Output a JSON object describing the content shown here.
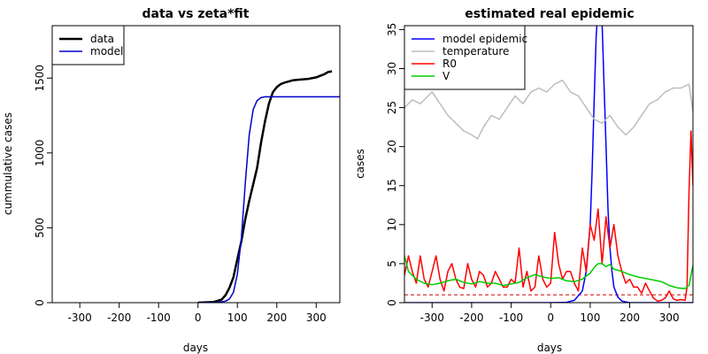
{
  "chart_data": [
    {
      "type": "line",
      "title": "data vs zeta*fit",
      "xlabel": "days",
      "ylabel": "cummulative cases",
      "xlim": [
        -370,
        360
      ],
      "ylim": [
        0,
        1850
      ],
      "xticks": [
        -300,
        -200,
        -100,
        0,
        100,
        200,
        300
      ],
      "yticks": [
        0,
        500,
        1000,
        1500
      ],
      "legend_position": "top-left",
      "series": [
        {
          "name": "data",
          "color": "#000000",
          "x": [
            0,
            40,
            60,
            70,
            80,
            90,
            100,
            110,
            120,
            130,
            140,
            150,
            160,
            170,
            180,
            190,
            200,
            210,
            220,
            240,
            260,
            280,
            300,
            310,
            320,
            330,
            340
          ],
          "y": [
            0,
            5,
            20,
            50,
            100,
            170,
            290,
            410,
            560,
            680,
            790,
            900,
            1070,
            1210,
            1330,
            1405,
            1440,
            1460,
            1470,
            1485,
            1490,
            1495,
            1505,
            1515,
            1525,
            1540,
            1545
          ]
        },
        {
          "name": "model",
          "color": "#0000cc",
          "x": [
            0,
            50,
            70,
            80,
            90,
            100,
            110,
            120,
            130,
            140,
            150,
            160,
            170,
            180,
            190,
            200,
            260,
            360
          ],
          "y": [
            0,
            2,
            10,
            25,
            70,
            190,
            430,
            800,
            1120,
            1290,
            1350,
            1370,
            1375,
            1375,
            1375,
            1375,
            1375,
            1375
          ]
        }
      ]
    },
    {
      "type": "line",
      "title": "estimated real epidemic",
      "xlabel": "days",
      "ylabel": "cases",
      "xlim": [
        -370,
        360
      ],
      "ylim": [
        0,
        35.5
      ],
      "xticks": [
        -300,
        -200,
        -100,
        0,
        100,
        200,
        300
      ],
      "yticks": [
        0,
        5,
        10,
        15,
        20,
        25,
        30,
        35
      ],
      "legend_position": "top-left",
      "reference_line": {
        "y": 1,
        "color": "#cc0000",
        "style": "dashed"
      },
      "series": [
        {
          "name": "model epidemic",
          "color": "#0000ff",
          "x": [
            -370,
            0,
            40,
            60,
            80,
            90,
            100,
            105,
            110,
            115,
            120,
            125,
            130,
            135,
            140,
            145,
            150,
            155,
            160,
            170,
            180,
            200,
            360
          ],
          "y": [
            0,
            0,
            0.05,
            0.3,
            1.5,
            4,
            10,
            17,
            26,
            34,
            38,
            39,
            36,
            28,
            20,
            12,
            7,
            4,
            2,
            0.7,
            0.2,
            0,
            0
          ]
        },
        {
          "name": "temperature",
          "color": "#bebebe",
          "x": [
            -370,
            -350,
            -330,
            -300,
            -280,
            -260,
            -240,
            -220,
            -200,
            -185,
            -170,
            -150,
            -130,
            -110,
            -90,
            -70,
            -50,
            -30,
            -10,
            10,
            30,
            50,
            70,
            90,
            110,
            130,
            150,
            170,
            190,
            210,
            230,
            250,
            270,
            290,
            310,
            330,
            350,
            360
          ],
          "y": [
            25,
            26,
            25.5,
            27,
            25.5,
            24,
            23,
            22,
            21.5,
            21,
            22.5,
            24,
            23.5,
            25,
            26.5,
            25.5,
            27,
            27.5,
            27,
            28,
            28.5,
            27,
            26.5,
            25,
            23.5,
            23,
            24,
            22.5,
            21.5,
            22.5,
            24,
            25.5,
            26,
            27,
            27.5,
            27.5,
            28,
            24.5
          ]
        },
        {
          "name": "R0",
          "color": "#ff0000",
          "x": [
            -370,
            -360,
            -350,
            -340,
            -330,
            -320,
            -310,
            -300,
            -290,
            -280,
            -270,
            -260,
            -250,
            -240,
            -230,
            -220,
            -210,
            -200,
            -190,
            -180,
            -170,
            -160,
            -150,
            -140,
            -130,
            -120,
            -110,
            -100,
            -90,
            -80,
            -70,
            -60,
            -50,
            -40,
            -30,
            -20,
            -10,
            0,
            10,
            20,
            30,
            40,
            50,
            60,
            70,
            80,
            90,
            100,
            110,
            120,
            130,
            140,
            150,
            160,
            170,
            180,
            190,
            200,
            210,
            220,
            230,
            240,
            250,
            260,
            270,
            280,
            290,
            300,
            310,
            320,
            330,
            340,
            345,
            350,
            355,
            360
          ],
          "y": [
            3.5,
            6,
            4,
            2.5,
            6,
            3,
            2,
            4,
            6,
            3,
            1.5,
            4,
            5,
            3,
            2,
            1.8,
            5,
            3,
            2,
            4,
            3.5,
            2,
            2.5,
            4,
            3,
            2,
            2,
            3,
            2.5,
            7,
            2,
            4,
            1.5,
            2,
            6,
            3,
            2,
            2.5,
            9,
            5,
            3,
            4,
            4,
            2.5,
            1.5,
            7,
            4,
            10,
            8,
            12,
            5,
            11,
            7,
            10,
            6,
            4,
            2.5,
            3,
            2,
            2,
            1.2,
            2.5,
            1.5,
            0.6,
            0.2,
            0.3,
            0.6,
            1.5,
            0.5,
            0.3,
            0.4,
            0.3,
            2,
            14,
            22,
            15
          ]
        },
        {
          "name": "V",
          "color": "#00cc00",
          "x": [
            -370,
            -360,
            -340,
            -320,
            -300,
            -280,
            -260,
            -240,
            -220,
            -200,
            -180,
            -160,
            -140,
            -120,
            -100,
            -80,
            -60,
            -40,
            -20,
            0,
            20,
            40,
            60,
            80,
            100,
            110,
            120,
            130,
            140,
            150,
            160,
            180,
            200,
            220,
            240,
            260,
            280,
            300,
            320,
            340,
            350,
            360
          ],
          "y": [
            6,
            4,
            3,
            2.5,
            2.3,
            2.5,
            2.8,
            3,
            2.6,
            2.4,
            2.7,
            2.5,
            2.5,
            2.2,
            2.4,
            2.6,
            3.2,
            3.6,
            3.3,
            3.1,
            3.2,
            2.8,
            2.7,
            3,
            3.8,
            4.5,
            5,
            5,
            4.6,
            4.9,
            4.3,
            4,
            3.6,
            3.3,
            3.1,
            2.9,
            2.7,
            2.2,
            1.9,
            1.8,
            2.2,
            4.8
          ]
        }
      ]
    }
  ]
}
